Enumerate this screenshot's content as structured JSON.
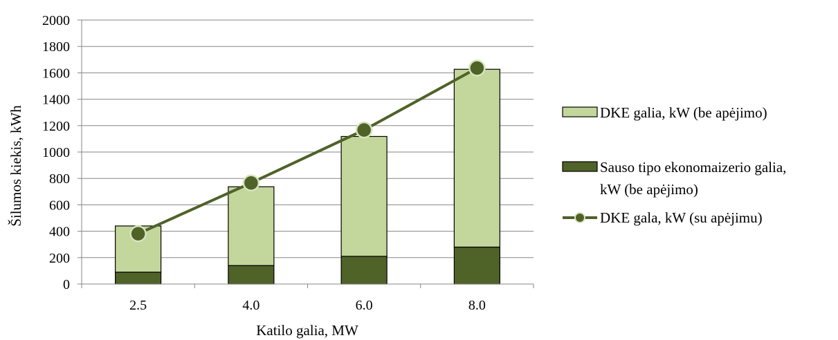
{
  "chart_data": {
    "type": "bar",
    "stacked": true,
    "categories": [
      "2.5",
      "4.0",
      "6.0",
      "8.0"
    ],
    "xlabel": "Katilo galia, MW",
    "ylabel": "Šilumos kiekis, kWh",
    "ylim": [
      0,
      2000
    ],
    "yticks": [
      "0",
      "200",
      "400",
      "600",
      "800",
      "1000",
      "1200",
      "1400",
      "1600",
      "1800",
      "2000"
    ],
    "grid": true,
    "legend_position": "right",
    "series": [
      {
        "name": "Sauso tipo ekonomaizerio galia, kW (be apėjimo)",
        "legend_lines": [
          "Sauso tipo ekonomaizerio galia,",
          "kW (be apėjimo)"
        ],
        "kind": "bar",
        "color": "#4f6228",
        "values": [
          90,
          140,
          210,
          280
        ]
      },
      {
        "name": "DKE galia, kW (be apėjimo)",
        "legend_lines": [
          "DKE galia, kW (be apėjimo)"
        ],
        "kind": "bar",
        "color": "#c3d69b",
        "values": [
          350,
          597,
          908,
          1347
        ]
      },
      {
        "name": "DKE gala, kW (su apėjimu)",
        "legend_lines": [
          "DKE gala, kW (su apėjimu)"
        ],
        "kind": "line",
        "color": "#4f6228",
        "marker_color": "#4f6228",
        "values": [
          381,
          766,
          1167,
          1636
        ]
      }
    ]
  }
}
